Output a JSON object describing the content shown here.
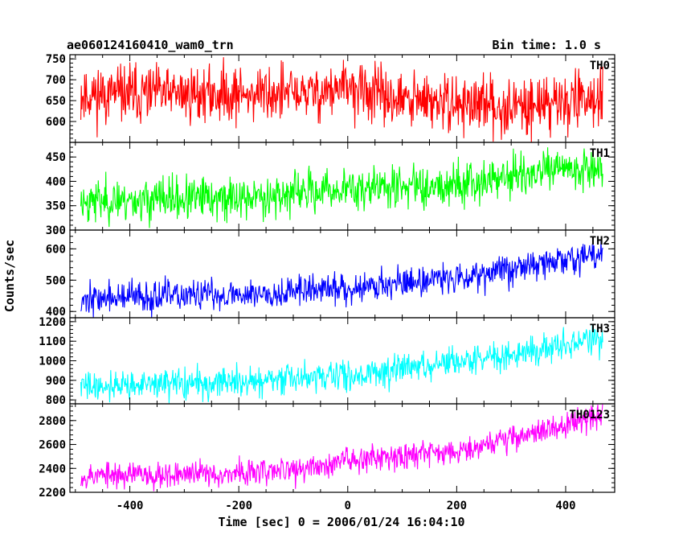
{
  "header": {
    "title_left": "ae060124160410_wam0_trn",
    "title_right": "Bin time: 1.0 s"
  },
  "chart_data": {
    "type": "line",
    "title": "ae060124160410_wam0_trn",
    "subtitle": "Bin time: 1.0 s",
    "xlabel": "Time [sec] 0 = 2006/01/24 16:04:10",
    "ylabel": "Counts/sec",
    "xlim": [
      -510,
      490
    ],
    "x_ticks": [
      -400,
      -200,
      0,
      200,
      400
    ],
    "x_range_data": [
      -490,
      468
    ],
    "grid": false,
    "panels": [
      {
        "name": "TH0",
        "color": "#ff0000",
        "ylim": [
          550,
          760
        ],
        "y_ticks": [
          600,
          650,
          700,
          750
        ],
        "trend": [
          [
            -490,
            665
          ],
          [
            -300,
            665
          ],
          [
            -60,
            668
          ],
          [
            0,
            680
          ],
          [
            100,
            650
          ],
          [
            300,
            635
          ],
          [
            468,
            660
          ]
        ],
        "noise": 34,
        "seed": 11
      },
      {
        "name": "TH1",
        "color": "#00ff00",
        "ylim": [
          300,
          480
        ],
        "y_ticks": [
          300,
          350,
          400,
          450
        ],
        "trend": [
          [
            -490,
            360
          ],
          [
            -200,
            365
          ],
          [
            0,
            385
          ],
          [
            200,
            395
          ],
          [
            400,
            425
          ],
          [
            468,
            430
          ]
        ],
        "noise": 22,
        "seed": 23
      },
      {
        "name": "TH2",
        "color": "#0000ff",
        "ylim": [
          380,
          660
        ],
        "y_ticks": [
          400,
          500,
          600
        ],
        "trend": [
          [
            -490,
            440
          ],
          [
            -200,
            455
          ],
          [
            0,
            475
          ],
          [
            200,
            510
          ],
          [
            400,
            565
          ],
          [
            468,
            580
          ]
        ],
        "noise": 25,
        "seed": 37
      },
      {
        "name": "TH3",
        "color": "#00ffff",
        "ylim": [
          780,
          1220
        ],
        "y_ticks": [
          800,
          900,
          1000,
          1100,
          1200
        ],
        "trend": [
          [
            -490,
            870
          ],
          [
            -200,
            890
          ],
          [
            0,
            925
          ],
          [
            200,
            990
          ],
          [
            400,
            1080
          ],
          [
            468,
            1115
          ]
        ],
        "noise": 38,
        "seed": 41
      },
      {
        "name": "TH0123",
        "color": "#ff00ff",
        "ylim": [
          2200,
          2940
        ],
        "y_ticks": [
          2200,
          2400,
          2600,
          2800
        ],
        "trend": [
          [
            -490,
            2340
          ],
          [
            -200,
            2360
          ],
          [
            -60,
            2400
          ],
          [
            0,
            2480
          ],
          [
            200,
            2550
          ],
          [
            400,
            2760
          ],
          [
            468,
            2850
          ]
        ],
        "noise": 55,
        "seed": 53
      }
    ]
  }
}
